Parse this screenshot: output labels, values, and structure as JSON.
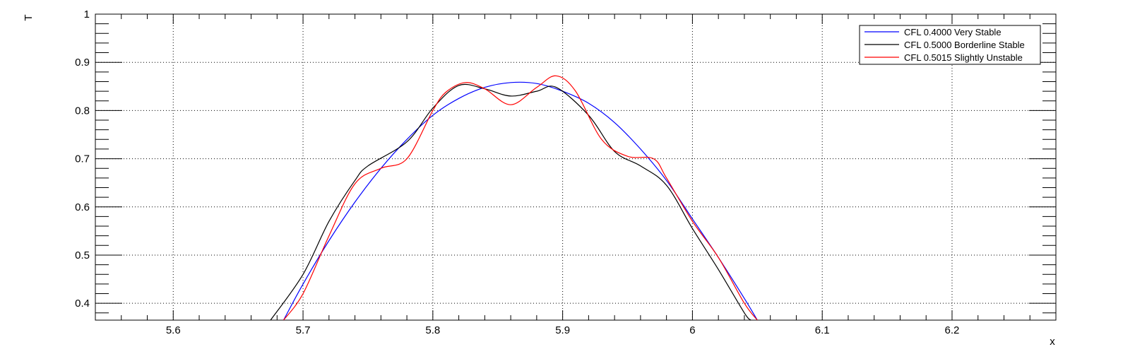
{
  "chart_data": {
    "type": "line",
    "title": "",
    "xlabel": "x",
    "ylabel": "T",
    "xlim": [
      5.54,
      6.28
    ],
    "ylim": [
      0.365,
      1.0
    ],
    "grid": true,
    "legend_position": "top-right",
    "x_ticks": [
      "5.6",
      "5.7",
      "5.8",
      "5.9",
      "6",
      "6.1",
      "6.2"
    ],
    "y_ticks": [
      "0.4",
      "0.5",
      "0.6",
      "0.7",
      "0.8",
      "0.9",
      "1"
    ],
    "series": [
      {
        "name": "CFL 0.4000 Very Stable",
        "color": "#0000ff",
        "x": [
          5.685,
          5.7,
          5.72,
          5.74,
          5.76,
          5.78,
          5.8,
          5.82,
          5.84,
          5.86,
          5.88,
          5.9,
          5.92,
          5.94,
          5.96,
          5.98,
          6.0,
          6.02,
          6.04,
          6.05
        ],
        "y": [
          0.365,
          0.44,
          0.53,
          0.61,
          0.68,
          0.74,
          0.79,
          0.825,
          0.848,
          0.858,
          0.856,
          0.84,
          0.815,
          0.775,
          0.72,
          0.655,
          0.575,
          0.495,
          0.41,
          0.365
        ]
      },
      {
        "name": "CFL 0.5000 Borderline Stable",
        "color": "#000000",
        "x": [
          5.675,
          5.7,
          5.72,
          5.74,
          5.75,
          5.78,
          5.8,
          5.82,
          5.84,
          5.86,
          5.88,
          5.895,
          5.92,
          5.94,
          5.96,
          5.98,
          6.0,
          6.02,
          6.04,
          6.045
        ],
        "y": [
          0.365,
          0.46,
          0.57,
          0.655,
          0.685,
          0.735,
          0.805,
          0.852,
          0.845,
          0.83,
          0.84,
          0.848,
          0.79,
          0.715,
          0.685,
          0.645,
          0.555,
          0.47,
          0.38,
          0.365
        ]
      },
      {
        "name": "CFL 0.5015 Slightly Unstable",
        "color": "#ff0000",
        "x": [
          5.685,
          5.7,
          5.72,
          5.74,
          5.76,
          5.78,
          5.8,
          5.81,
          5.825,
          5.84,
          5.86,
          5.88,
          5.895,
          5.91,
          5.93,
          5.95,
          5.97,
          5.98,
          6.0,
          6.02,
          6.04,
          6.05
        ],
        "y": [
          0.365,
          0.42,
          0.54,
          0.648,
          0.68,
          0.7,
          0.8,
          0.838,
          0.858,
          0.845,
          0.812,
          0.848,
          0.872,
          0.84,
          0.74,
          0.705,
          0.7,
          0.66,
          0.57,
          0.495,
          0.4,
          0.365
        ]
      }
    ]
  }
}
